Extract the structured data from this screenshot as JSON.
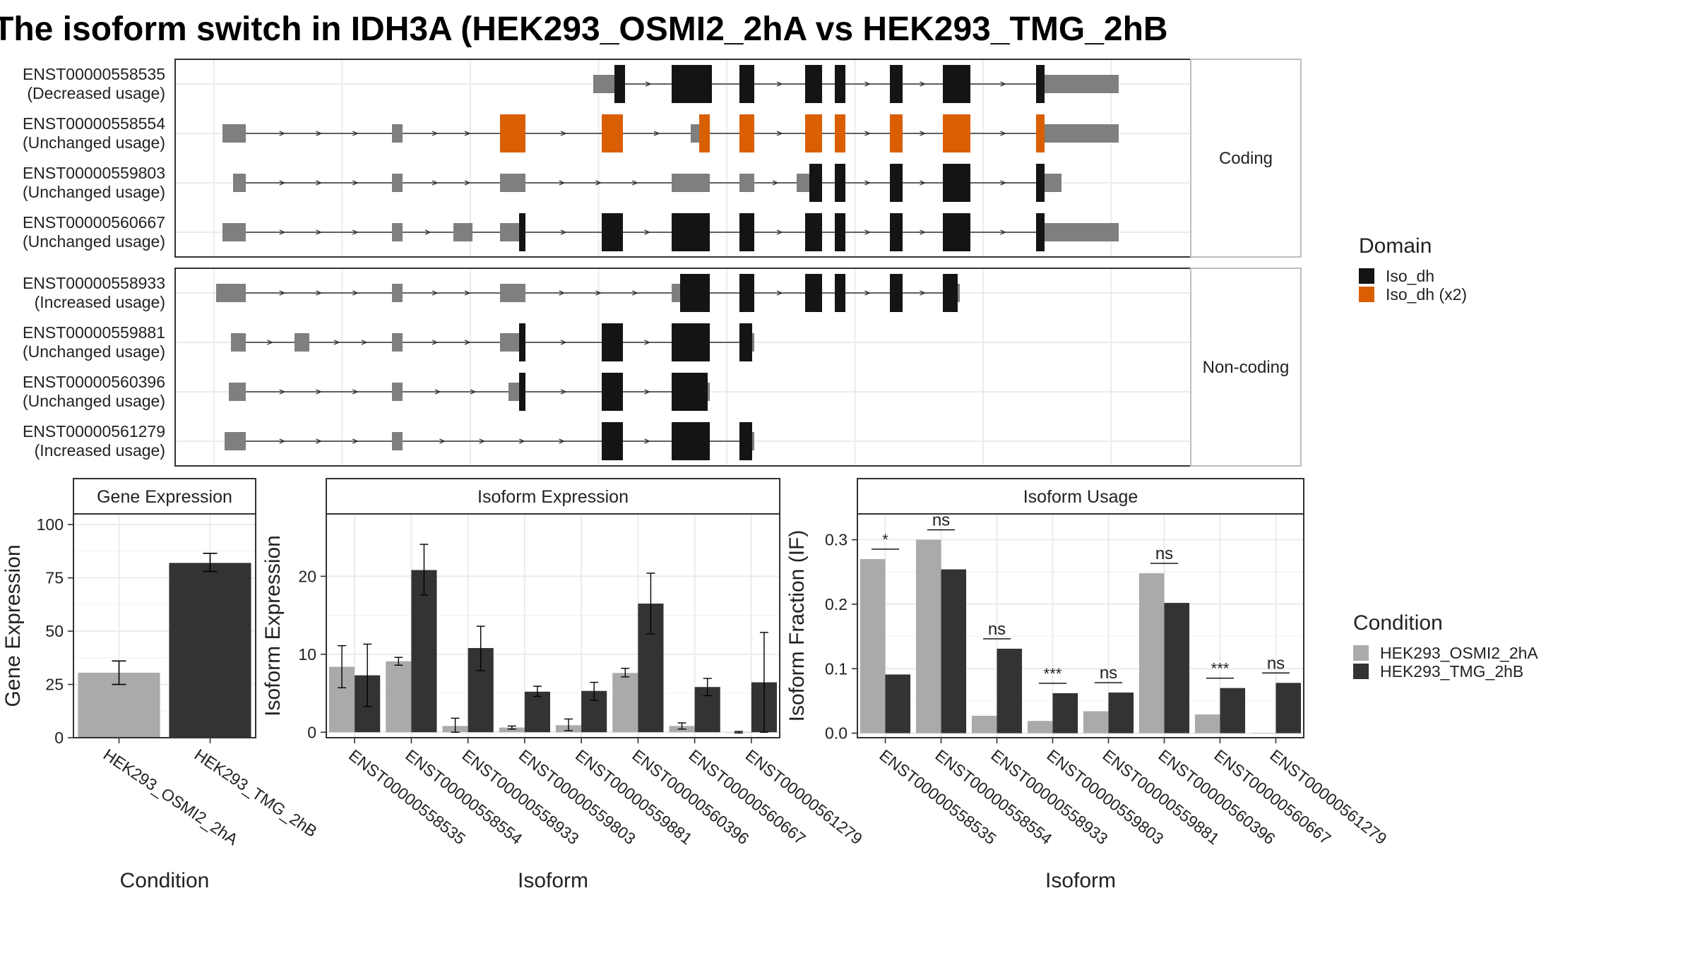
{
  "title": "The isoform switch in IDH3A (HEK293_OSMI2_2hA vs HEK293_TMG_2hB",
  "colors": {
    "domain_iso_dh": "#141414",
    "domain_iso_dh_x2": "#d95f02",
    "cond_a": "#aaaaaa",
    "cond_b": "#333333",
    "utr": "#7f7f7f",
    "panel_border": "#333333",
    "grid": "#ebebeb"
  },
  "structure_panels": [
    {
      "label": "Coding",
      "transcripts": [
        {
          "id": "ENST00000558535",
          "usage": "(Decreased usage)",
          "exons": [
            [
              560,
              580,
              "u"
            ],
            [
              580,
              590,
              "d"
            ],
            [
              634,
              672,
              "d"
            ],
            [
              698,
              712,
              "d"
            ],
            [
              760,
              776,
              "d"
            ],
            [
              788,
              798,
              "d"
            ],
            [
              840,
              852,
              "d"
            ],
            [
              890,
              916,
              "d"
            ],
            [
              978,
              986,
              "d"
            ],
            [
              986,
              992,
              "u"
            ],
            [
              992,
              1056,
              "u"
            ]
          ]
        },
        {
          "id": "ENST00000558554",
          "usage": "(Unchanged usage)",
          "exons": [
            [
              210,
              226,
              "u"
            ],
            [
              226,
              232,
              "u"
            ],
            [
              370,
              380,
              "u"
            ],
            [
              472,
              496,
              "o"
            ],
            [
              568,
              588,
              "o"
            ],
            [
              652,
              660,
              "u"
            ],
            [
              660,
              670,
              "o"
            ],
            [
              698,
              712,
              "o"
            ],
            [
              760,
              776,
              "o"
            ],
            [
              788,
              798,
              "o"
            ],
            [
              840,
              852,
              "o"
            ],
            [
              890,
              916,
              "o"
            ],
            [
              978,
              986,
              "o"
            ],
            [
              986,
              1056,
              "u"
            ]
          ]
        },
        {
          "id": "ENST00000559803",
          "usage": "(Unchanged usage)",
          "exons": [
            [
              220,
              232,
              "u"
            ],
            [
              370,
              380,
              "u"
            ],
            [
              472,
              496,
              "u"
            ],
            [
              634,
              670,
              "u"
            ],
            [
              698,
              712,
              "u"
            ],
            [
              752,
              764,
              "u"
            ],
            [
              764,
              776,
              "d"
            ],
            [
              788,
              798,
              "d"
            ],
            [
              840,
              852,
              "d"
            ],
            [
              890,
              916,
              "d"
            ],
            [
              978,
              986,
              "d"
            ],
            [
              986,
              1002,
              "u"
            ]
          ]
        },
        {
          "id": "ENST00000560667",
          "usage": "(Unchanged usage)",
          "exons": [
            [
              210,
              232,
              "u"
            ],
            [
              370,
              380,
              "u"
            ],
            [
              428,
              446,
              "u"
            ],
            [
              472,
              490,
              "u"
            ],
            [
              490,
              496,
              "d"
            ],
            [
              568,
              588,
              "d"
            ],
            [
              634,
              670,
              "d"
            ],
            [
              698,
              712,
              "d"
            ],
            [
              760,
              776,
              "d"
            ],
            [
              788,
              798,
              "d"
            ],
            [
              840,
              852,
              "d"
            ],
            [
              890,
              916,
              "d"
            ],
            [
              978,
              986,
              "d"
            ],
            [
              986,
              1056,
              "u"
            ]
          ]
        }
      ]
    },
    {
      "label": "Non-coding",
      "transcripts": [
        {
          "id": "ENST00000558933",
          "usage": "(Increased usage)",
          "exons": [
            [
              204,
              232,
              "u"
            ],
            [
              370,
              380,
              "u"
            ],
            [
              472,
              496,
              "u"
            ],
            [
              634,
              642,
              "u"
            ],
            [
              642,
              670,
              "d"
            ],
            [
              698,
              712,
              "d"
            ],
            [
              760,
              776,
              "d"
            ],
            [
              788,
              798,
              "d"
            ],
            [
              840,
              852,
              "d"
            ],
            [
              890,
              904,
              "d"
            ],
            [
              904,
              906,
              "u"
            ]
          ]
        },
        {
          "id": "ENST00000559881",
          "usage": "(Unchanged usage)",
          "exons": [
            [
              218,
              232,
              "u"
            ],
            [
              278,
              292,
              "u"
            ],
            [
              370,
              380,
              "u"
            ],
            [
              472,
              490,
              "u"
            ],
            [
              490,
              496,
              "d"
            ],
            [
              568,
              588,
              "d"
            ],
            [
              634,
              670,
              "d"
            ],
            [
              698,
              710,
              "d"
            ],
            [
              710,
              712,
              "u"
            ]
          ]
        },
        {
          "id": "ENST00000560396",
          "usage": "(Unchanged usage)",
          "exons": [
            [
              216,
              232,
              "u"
            ],
            [
              370,
              380,
              "u"
            ],
            [
              480,
              490,
              "u"
            ],
            [
              490,
              496,
              "d"
            ],
            [
              568,
              588,
              "d"
            ],
            [
              634,
              668,
              "d"
            ],
            [
              668,
              670,
              "u"
            ]
          ]
        },
        {
          "id": "ENST00000561279",
          "usage": "(Increased usage)",
          "exons": [
            [
              212,
              226,
              "u"
            ],
            [
              226,
              232,
              "u"
            ],
            [
              370,
              380,
              "u"
            ],
            [
              568,
              588,
              "d"
            ],
            [
              634,
              670,
              "d"
            ],
            [
              698,
              710,
              "d"
            ],
            [
              710,
              712,
              "u"
            ]
          ]
        }
      ]
    }
  ],
  "domain_legend": {
    "title": "Domain",
    "entries": [
      {
        "label": "Iso_dh",
        "color": "#141414"
      },
      {
        "label": "Iso_dh (x2)",
        "color": "#d95f02"
      }
    ]
  },
  "condition_legend": {
    "title": "Condition",
    "entries": [
      {
        "label": "HEK293_OSMI2_2hA",
        "color": "#aaaaaa"
      },
      {
        "label": "HEK293_TMG_2hB",
        "color": "#333333"
      }
    ]
  },
  "chart_data": [
    {
      "type": "bar",
      "title": "Gene Expression",
      "xlabel": "Condition",
      "ylabel": "Gene Expression",
      "ylim": [
        0,
        105
      ],
      "yticks": [
        0,
        25,
        50,
        75,
        100
      ],
      "categories": [
        "HEK293_OSMI2_2hA",
        "HEK293_TMG_2hB"
      ],
      "values": [
        30.5,
        82
      ],
      "errors": [
        [
          25,
          36
        ],
        [
          78,
          86.5
        ]
      ],
      "bar_colors": [
        "#aaaaaa",
        "#333333"
      ]
    },
    {
      "type": "bar",
      "title": "Isoform Expression",
      "xlabel": "Isoform",
      "ylabel": "Isoform Expression",
      "ylim": [
        -0.7,
        28
      ],
      "yticks": [
        0,
        10,
        20
      ],
      "categories": [
        "ENST00000558535",
        "ENST00000558554",
        "ENST00000558933",
        "ENST00000559803",
        "ENST00000559881",
        "ENST00000560396",
        "ENST00000560667",
        "ENST00000561279"
      ],
      "series": [
        {
          "name": "HEK293_OSMI2_2hA",
          "values": [
            8.4,
            9.1,
            0.8,
            0.6,
            0.9,
            7.6,
            0.8,
            0.0
          ],
          "errors": [
            [
              5.7,
              11.1
            ],
            [
              8.6,
              9.6
            ],
            [
              0.0,
              1.8
            ],
            [
              0.4,
              0.8
            ],
            [
              0.2,
              1.7
            ],
            [
              7.1,
              8.2
            ],
            [
              0.4,
              1.2
            ],
            [
              -0.1,
              0.1
            ]
          ]
        },
        {
          "name": "HEK293_TMG_2hB",
          "values": [
            7.3,
            20.8,
            10.8,
            5.2,
            5.3,
            16.5,
            5.8,
            6.4
          ],
          "errors": [
            [
              3.3,
              11.3
            ],
            [
              17.6,
              24.1
            ],
            [
              7.9,
              13.6
            ],
            [
              4.6,
              5.9
            ],
            [
              4.1,
              6.4
            ],
            [
              12.6,
              20.4
            ],
            [
              4.7,
              6.9
            ],
            [
              0.0,
              12.8
            ]
          ]
        }
      ]
    },
    {
      "type": "bar",
      "title": "Isoform Usage",
      "xlabel": "Isoform",
      "ylabel": "Isoform Fraction (IF)",
      "ylim": [
        -0.007,
        0.34
      ],
      "yticks": [
        0.0,
        0.1,
        0.2,
        0.3
      ],
      "ytick_labels": [
        "0.0",
        "0.1",
        "0.2",
        "0.3"
      ],
      "categories": [
        "ENST00000558535",
        "ENST00000558554",
        "ENST00000558933",
        "ENST00000559803",
        "ENST00000559881",
        "ENST00000560396",
        "ENST00000560667",
        "ENST00000561279"
      ],
      "series": [
        {
          "name": "HEK293_OSMI2_2hA",
          "values": [
            0.27,
            0.3,
            0.027,
            0.019,
            0.034,
            0.248,
            0.029,
            0.0
          ]
        },
        {
          "name": "HEK293_TMG_2hB",
          "values": [
            0.091,
            0.254,
            0.131,
            0.062,
            0.063,
            0.202,
            0.07,
            0.078
          ]
        }
      ],
      "significance": [
        "*",
        "ns",
        "ns",
        "***",
        "ns",
        "ns",
        "***",
        "ns"
      ]
    }
  ]
}
